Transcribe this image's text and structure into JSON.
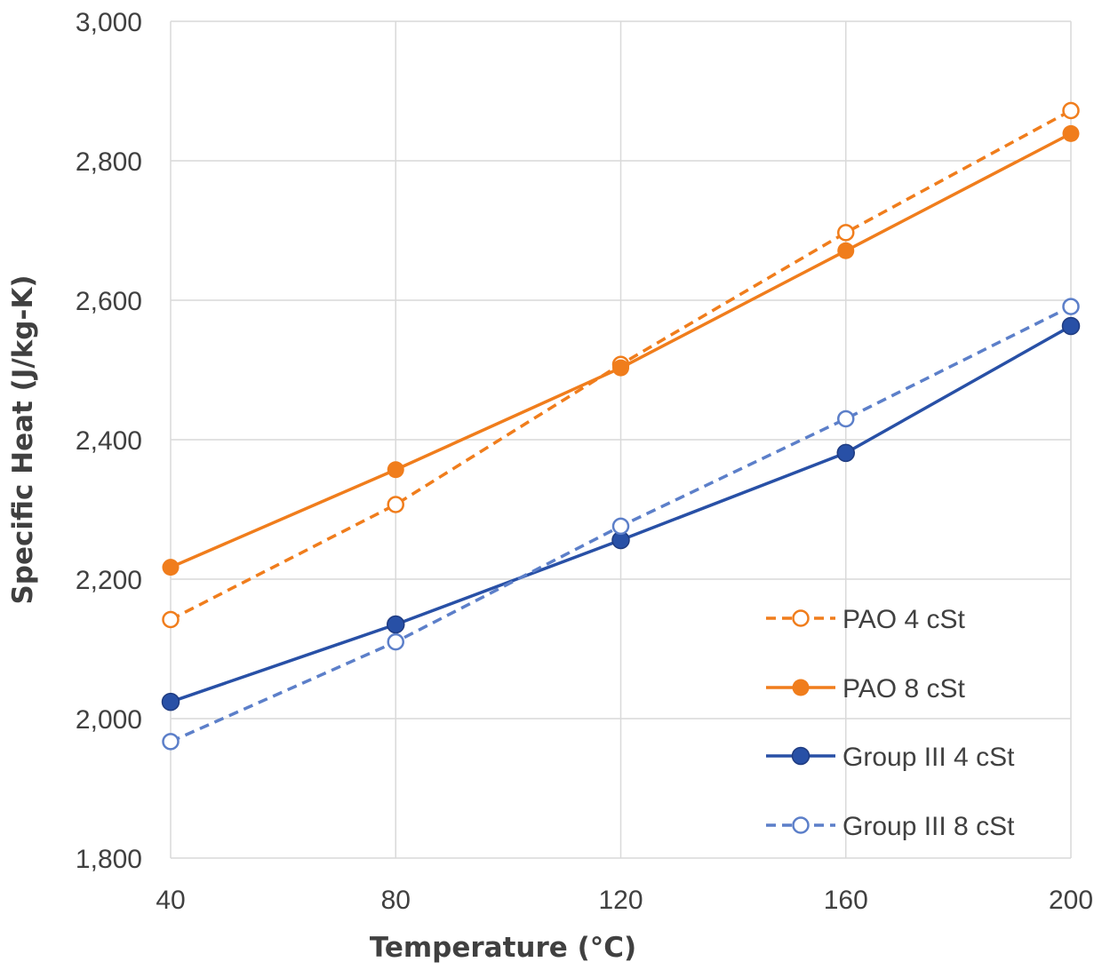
{
  "chart_data": {
    "type": "line",
    "xlabel": "Temperature (°C)",
    "ylabel": "Specific Heat (J/kg-K)",
    "x": [
      40,
      80,
      120,
      160,
      200
    ],
    "x_tick_labels": [
      "40",
      "80",
      "120",
      "160",
      "200"
    ],
    "ylim": [
      1800,
      3000
    ],
    "y_ticks": [
      1800,
      2000,
      2200,
      2400,
      2600,
      2800,
      3000
    ],
    "y_tick_labels": [
      "1,800",
      "2,000",
      "2,200",
      "2,400",
      "2,600",
      "2,800",
      "3,000"
    ],
    "grid": true,
    "legend_position": "bottom-right",
    "series": [
      {
        "name": "PAO 4 cSt",
        "values": [
          2142,
          2307,
          2508,
          2697,
          2872
        ],
        "color": "#f07d1c",
        "line_style": "dashed",
        "marker": "open-circle"
      },
      {
        "name": "PAO 8 cSt",
        "values": [
          2217,
          2357,
          2503,
          2671,
          2839
        ],
        "color": "#f07d1c",
        "line_style": "solid",
        "marker": "filled-circle"
      },
      {
        "name": "Group III 4 cSt",
        "values": [
          2024,
          2135,
          2256,
          2381,
          2563
        ],
        "color": "#2850a6",
        "line_style": "solid",
        "marker": "filled-circle"
      },
      {
        "name": "Group III 8 cSt",
        "values": [
          1967,
          2110,
          2276,
          2430,
          2591
        ],
        "color": "#5c7fc9",
        "line_style": "dashed",
        "marker": "open-circle"
      }
    ]
  }
}
